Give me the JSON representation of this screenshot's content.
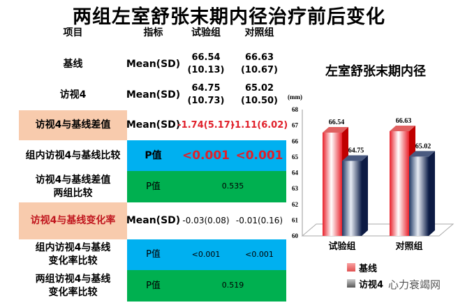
{
  "title": "两组左室舒张末期内径治疗前后变化",
  "table": {
    "headers": [
      "项目",
      "指标",
      "试验组",
      "对照组"
    ],
    "rows": [
      {
        "label": "基线",
        "metric": "Mean(SD)",
        "trial": "66.54",
        "trial_sd": "(10.13)",
        "control": "66.63",
        "control_sd": "(10.67)"
      },
      {
        "label": "访视4",
        "metric": "Mean(SD)",
        "trial": "64.75",
        "trial_sd": "(10.73)",
        "control": "65.02",
        "control_sd": "(10.50)"
      },
      {
        "label": "访视4与基线差值",
        "metric": "Mean(SD)",
        "trial": "-1.74(5.17)",
        "control": "-1.11(6.02)"
      },
      {
        "label": "组内访视4与基线比较",
        "metric": "P值",
        "trial": "<0.001",
        "control": "<0.001"
      },
      {
        "label1": "访视4与基线差值",
        "label2": "两组比较",
        "metric": "P值",
        "value": "0.535"
      },
      {
        "label": "访视4与基线变化率",
        "metric": "Mean(SD)",
        "trial": "-0.03(0.08)",
        "control": "-0.01(0.16)"
      },
      {
        "label1": "组内访视4与基线",
        "label2": "变化率比较",
        "metric": "P值",
        "trial": "<0.001",
        "control": "<0.001"
      },
      {
        "label1": "两组访视4与基线",
        "label2": "变化率比较",
        "metric": "P值",
        "value": "0.519"
      }
    ]
  },
  "colors": {
    "peach": "#F8CBAD",
    "blue": "#00B0F0",
    "green": "#00B050",
    "baseline": "#E8202A",
    "visit4": "#1F3864"
  },
  "watermark": "心力衰竭网",
  "chart_data": {
    "type": "bar",
    "title": "左室舒张末期内径",
    "unit": "(mm)",
    "categories": [
      "试验组",
      "对照组"
    ],
    "series": [
      {
        "name": "基线",
        "values": [
          66.54,
          66.63
        ]
      },
      {
        "name": "访视4",
        "values": [
          64.75,
          65.02
        ]
      }
    ],
    "value_labels": [
      [
        "66.54",
        "66.63"
      ],
      [
        "64.75",
        "65.02"
      ]
    ],
    "ylim": [
      60,
      68
    ],
    "yticks": [
      "60",
      "61",
      "62",
      "63",
      "64",
      "65",
      "66",
      "67",
      "68"
    ],
    "legend": "bottom",
    "style": "3d"
  }
}
